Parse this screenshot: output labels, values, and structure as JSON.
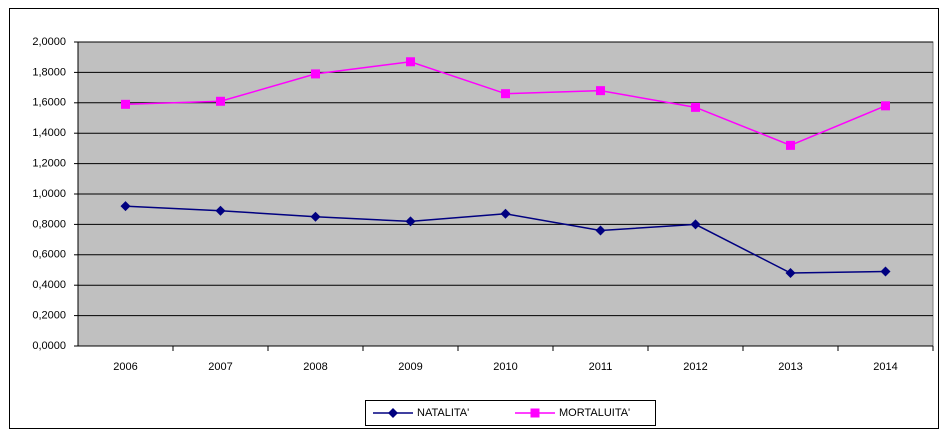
{
  "chart_data": {
    "type": "line",
    "categories": [
      "2006",
      "2007",
      "2008",
      "2009",
      "2010",
      "2011",
      "2012",
      "2013",
      "2014"
    ],
    "series": [
      {
        "name": "NATALITA'",
        "color": "#000080",
        "marker": "diamond",
        "values": [
          0.92,
          0.89,
          0.85,
          0.82,
          0.87,
          0.76,
          0.8,
          0.48,
          0.49
        ]
      },
      {
        "name": "MORTALUITA'",
        "color": "#ff00ff",
        "marker": "square",
        "values": [
          1.59,
          1.61,
          1.79,
          1.87,
          1.66,
          1.68,
          1.57,
          1.32,
          1.58
        ]
      }
    ],
    "ylim": [
      0,
      2
    ],
    "yticks": [
      {
        "value": 0,
        "label": "0,0000"
      },
      {
        "value": 0.2,
        "label": "0,2000"
      },
      {
        "value": 0.4,
        "label": "0,4000"
      },
      {
        "value": 0.6,
        "label": "0,6000"
      },
      {
        "value": 0.8,
        "label": "0,8000"
      },
      {
        "value": 1,
        "label": "1,0000"
      },
      {
        "value": 1.2,
        "label": "1,2000"
      },
      {
        "value": 1.4,
        "label": "1,4000"
      },
      {
        "value": 1.6,
        "label": "1,6000"
      },
      {
        "value": 1.8,
        "label": "1,8000"
      },
      {
        "value": 2,
        "label": "2,0000"
      }
    ],
    "grid": true,
    "plot_background": "#c0c0c0",
    "legend": "bottom"
  }
}
